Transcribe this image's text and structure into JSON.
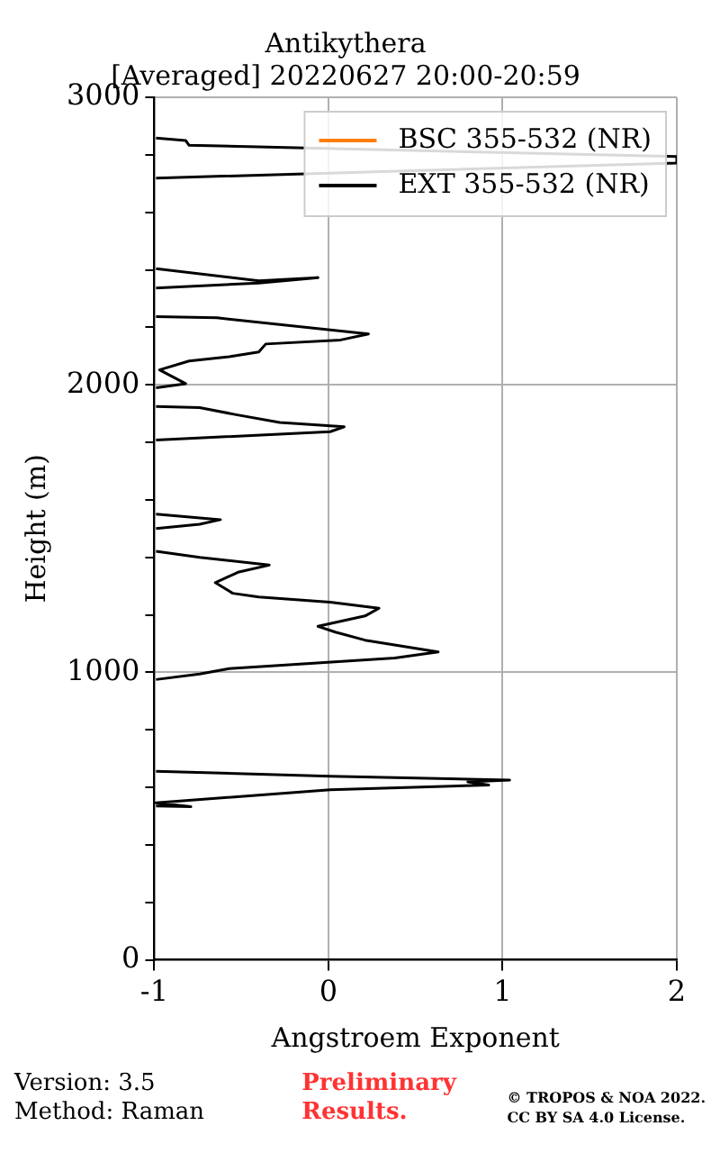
{
  "chart_data": {
    "type": "line",
    "title": "Antikythera",
    "subtitle": "[Averaged] 20220627 20:00-20:59",
    "xlabel": "Angstroem Exponent",
    "ylabel": "Height (m)",
    "xlim": [
      -1,
      2
    ],
    "xticks": [
      -1,
      0,
      1,
      2
    ],
    "ylim": [
      0,
      3000
    ],
    "yticks": [
      0,
      {
        "value": 200,
        "label": null
      },
      {
        "value": 400,
        "label": null
      },
      {
        "value": 600,
        "label": null
      },
      {
        "value": 800,
        "label": null
      },
      1000,
      {
        "value": 1200,
        "label": null
      },
      {
        "value": 1400,
        "label": null
      },
      {
        "value": 1600,
        "label": null
      },
      {
        "value": 1800,
        "label": null
      },
      2000,
      {
        "value": 2200,
        "label": null
      },
      {
        "value": 2400,
        "label": null
      },
      {
        "value": 2600,
        "label": null
      },
      {
        "value": 2800,
        "label": null
      },
      3000
    ],
    "grid": true,
    "legend": "top right",
    "marker": "none",
    "line_style": "solid",
    "series": [
      {
        "name": "BSC 355-532 (NR)",
        "color": "#ff7f0e"
      },
      {
        "name": "EXT 355-532 (NR)",
        "color": "#000000",
        "x": [
          -0.99,
          -0.82,
          -0.8,
          2.0,
          2.0,
          -0.99,
          null,
          -0.99,
          -0.4,
          -0.06,
          -0.4,
          -0.99,
          null,
          -0.99,
          -0.64,
          0.23,
          0.07,
          -0.36,
          -0.4,
          -0.57,
          -0.8,
          -0.97,
          -0.82,
          -0.99,
          null,
          -0.99,
          -0.74,
          -0.53,
          -0.28,
          0.09,
          0.01,
          -0.99,
          null,
          -0.99,
          -0.62,
          -0.74,
          -0.99,
          null,
          -0.99,
          -0.74,
          -0.34,
          -0.52,
          -0.65,
          -0.55,
          -0.4,
          0.01,
          0.29,
          0.21,
          -0.06,
          0.04,
          0.21,
          0.63,
          0.38,
          -0.57,
          -0.74,
          -0.99,
          null,
          -0.99,
          0.01,
          1.04,
          0.8,
          0.92,
          0.01,
          -0.99,
          -0.79,
          -0.99
        ],
        "values": [
          2858,
          2850,
          2833,
          2794,
          2771,
          2719,
          null,
          2404,
          2362,
          2373,
          2354,
          2337,
          null,
          2237,
          2233,
          2177,
          2156,
          2142,
          2114,
          2098,
          2083,
          2052,
          2004,
          1990,
          null,
          1925,
          1921,
          1896,
          1869,
          1854,
          1837,
          1808,
          null,
          1550,
          1531,
          1515,
          1500,
          null,
          1421,
          1400,
          1373,
          1348,
          1312,
          1275,
          1262,
          1244,
          1223,
          1196,
          1160,
          1140,
          1112,
          1071,
          1050,
          1013,
          994,
          975,
          null,
          656,
          639,
          625,
          619,
          608,
          592,
          546,
          533,
          535
        ]
      }
    ],
    "annotations": [
      "Version: 3.5",
      "Method: Raman",
      "Preliminary Results.",
      "© TROPOS & NOA 2022.",
      "CC BY SA 4.0 License."
    ]
  }
}
